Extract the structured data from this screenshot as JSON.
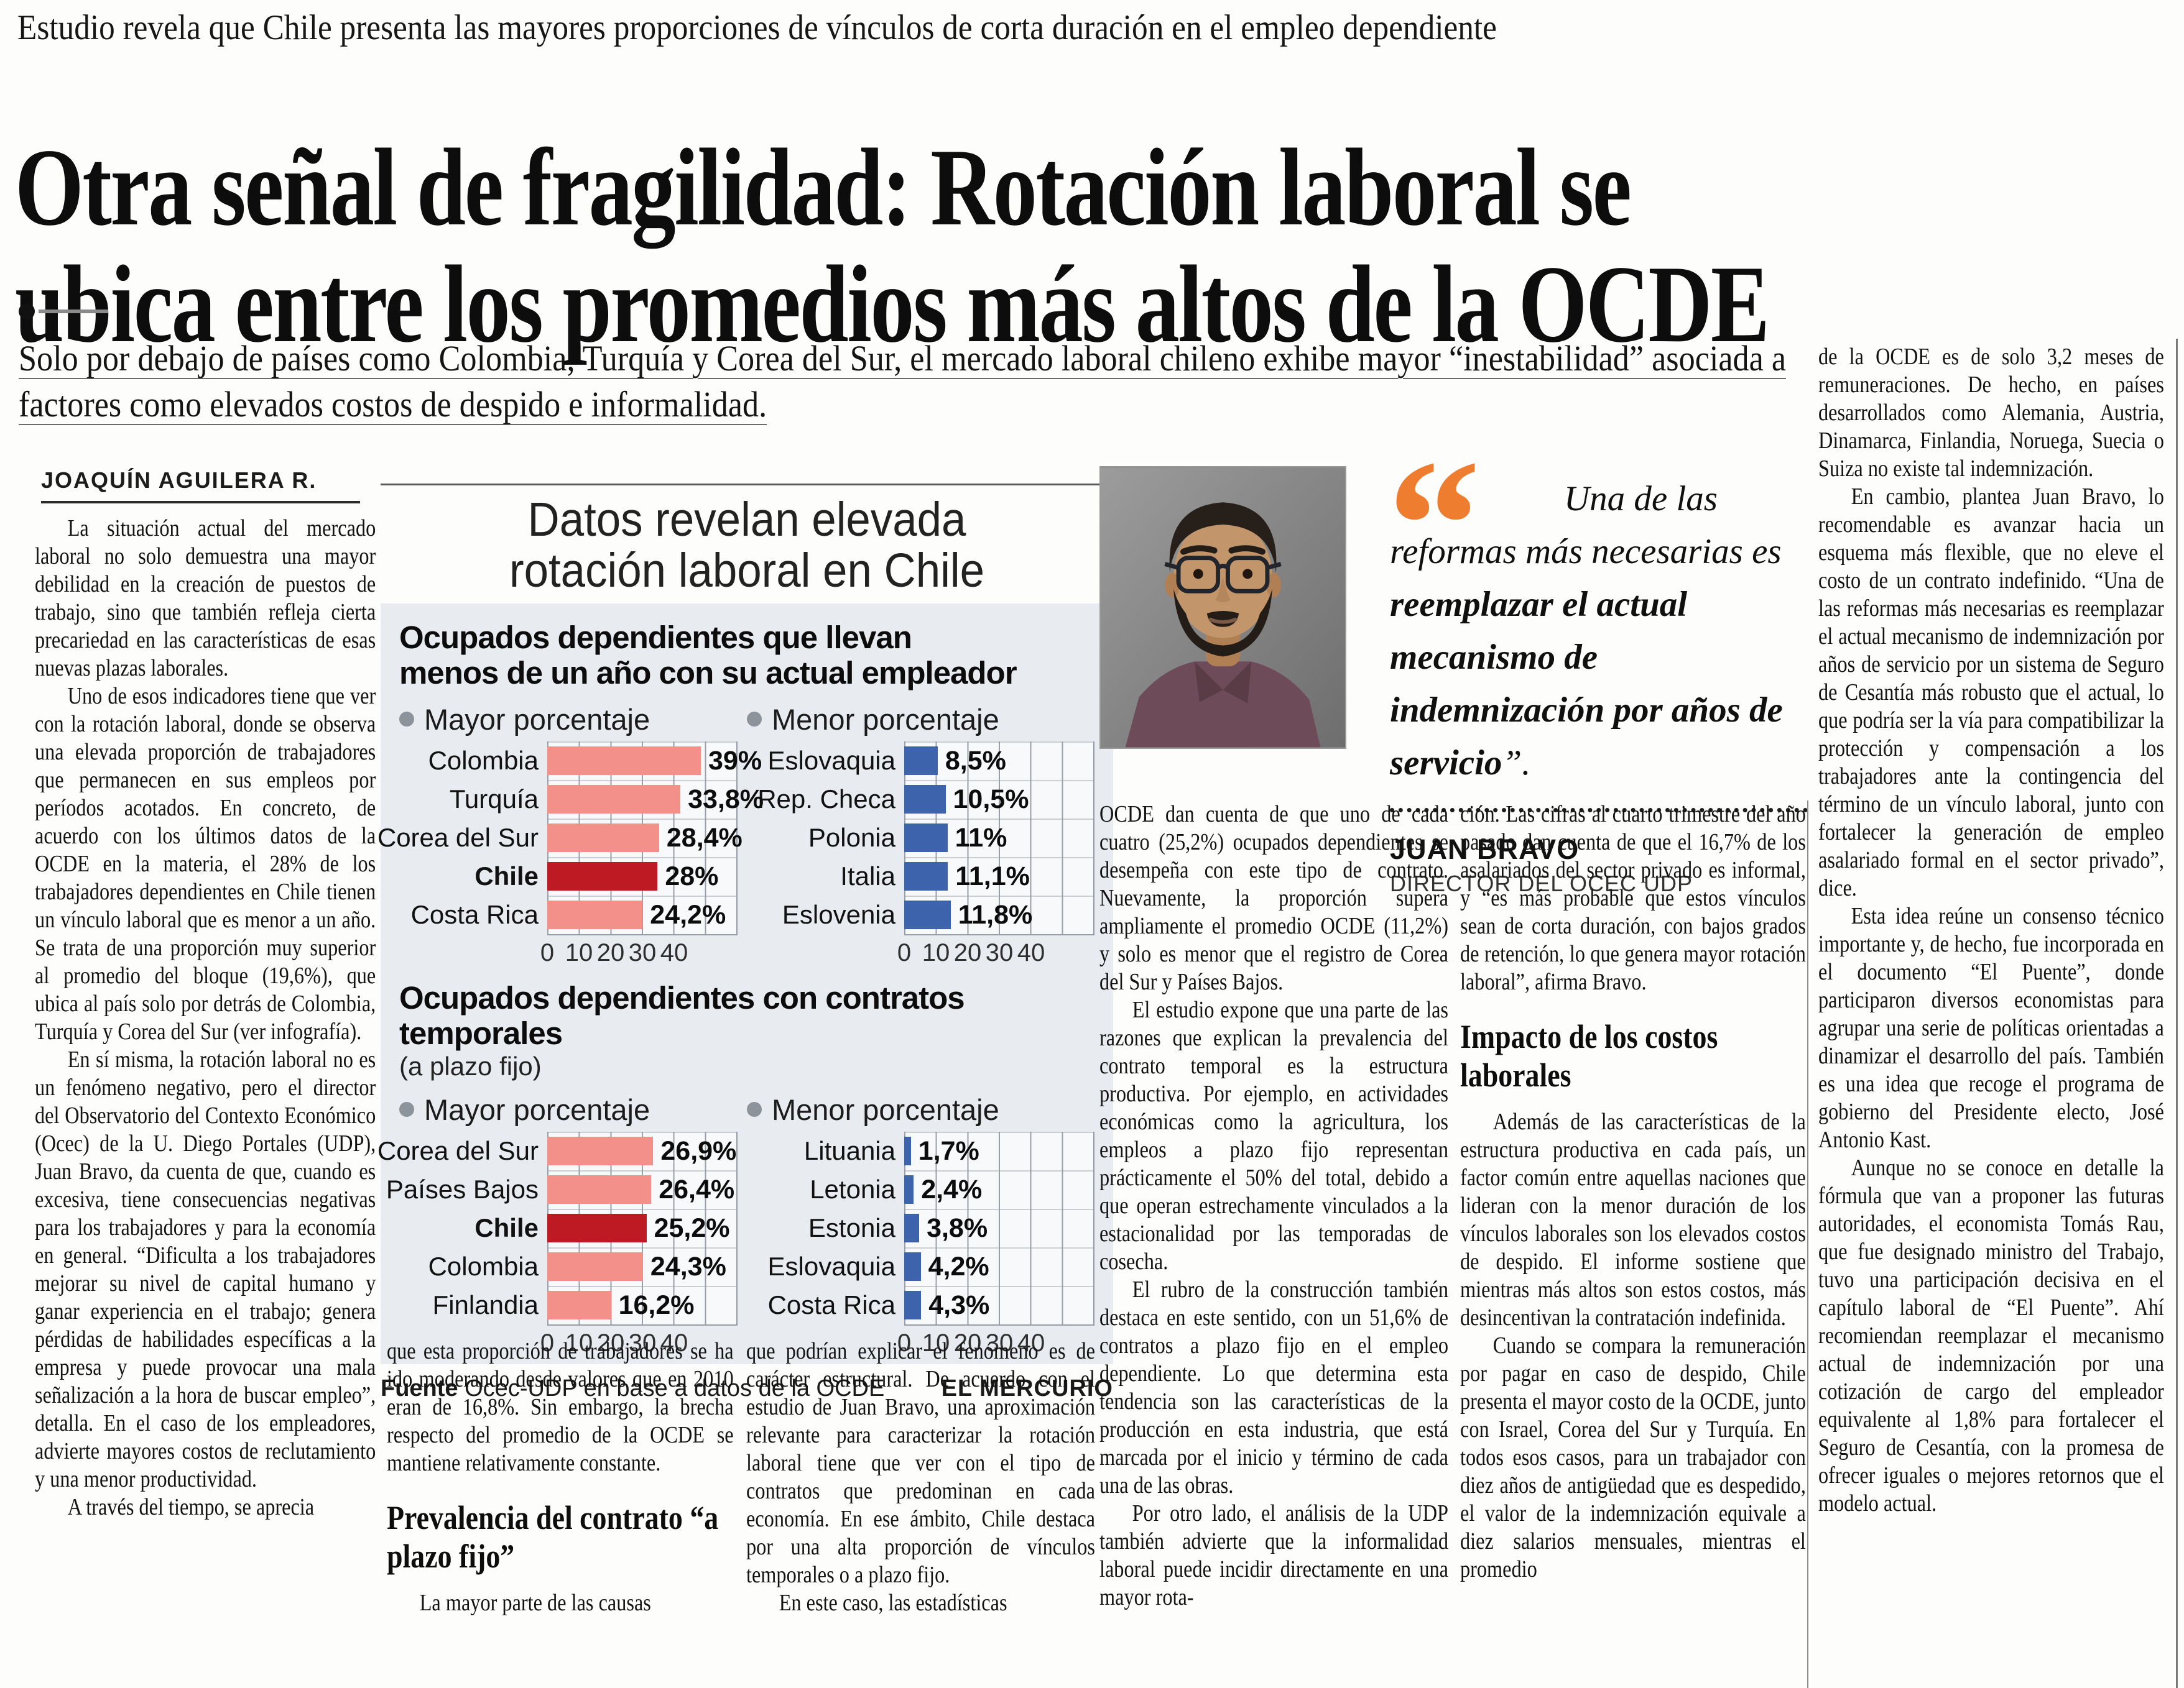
{
  "page": {
    "kicker": "Estudio revela que Chile presenta las mayores proporciones de vínculos de corta duración en el empleo dependiente",
    "headline_line1": "Otra señal de fragilidad: Rotación laboral se",
    "headline_line2": "ubica entre los promedios más altos de la OCDE",
    "deck": "Solo por debajo de países como Colombia, Turquía y Corea del Sur, el mercado laboral chileno exhibe mayor “inestabilidad” asociada a factores como elevados costos de despido e informalidad.",
    "byline": "JOAQUÍN AGUILERA R."
  },
  "body": {
    "col1": [
      "La situación actual del mercado laboral no solo demuestra una mayor debilidad en la creación de puestos de trabajo, sino que también refleja cierta precariedad en las características de esas nuevas plazas laborales.",
      "Uno de esos indicadores tiene que ver con la rotación laboral, donde se observa una elevada proporción de trabajadores que permanecen en sus empleos por períodos acotados. En concreto, de acuerdo con los últimos datos de la OCDE en la materia, el 28% de los trabajadores dependientes en Chile tienen un vínculo laboral que es menor a un año. Se trata de una proporción muy superior al promedio del bloque (19,6%), que ubica al país solo por detrás de Colombia, Turquía y Corea del Sur (ver infografía).",
      "En sí misma, la rotación laboral no es un fenómeno negativo, pero el director del Observatorio del Contexto Económico (Ocec) de la U. Diego Portales (UDP), Juan Bravo, da cuenta de que, cuando es excesiva, tiene consecuencias negativas para los trabajadores y para la economía en general. “Dificulta a los trabajadores mejorar su nivel de capital humano y ganar experiencia en el trabajo; genera pérdidas de habilidades específicas a la empresa y puede provocar una mala señalización a la hora de buscar empleo”, detalla. En el caso de los empleadores, advierte mayores costos de reclutamiento y una menor productividad.",
      "A través del tiempo, se aprecia"
    ],
    "col2_p1": "que esta proporción de trabajadores se ha ido moderando desde valores que en 2010 eran de 16,8%. Sin embargo, la brecha respecto del promedio de la OCDE se mantiene relativamente constante.",
    "col2_subhead": "Prevalencia del contrato “a plazo fijo”",
    "col2_p2": "La mayor parte de las causas",
    "col3_p1": "que podrían explicar el fenómeno es de carácter estructural. De acuerdo con el estudio de Juan Bravo, una aproximación relevante para caracterizar la rotación laboral tiene que ver con el tipo de contratos que predominan en cada economía. En ese ámbito, Chile destaca por una alta proporción de vínculos temporales o a plazo fijo.",
    "col3_p2": "En este caso, las estadísticas",
    "col4": [
      "OCDE dan cuenta de que uno de cada cuatro (25,2%) ocupados dependientes se desempeña con este tipo de contrato. Nuevamente, la proporción supera ampliamente el promedio OCDE (11,2%) y solo es menor que el registro de Corea del Sur y Países Bajos.",
      "El estudio expone que una parte de las razones que explican la prevalencia del contrato temporal es la estructura productiva. Por ejemplo, en actividades económicas como la agricultura, los empleos a plazo fijo representan prácticamente el 50% del total, debido a que operan estrechamente vinculados a la estacionalidad por las temporadas de cosecha.",
      "El rubro de la construcción también destaca en este sentido, con un 51,6% de contratos a plazo fijo en el empleo dependiente. Lo que determina esta tendencia son las características de la producción en esta industria, que está marcada por el inicio y término de cada una de las obras.",
      "Por otro lado, el análisis de la UDP también advierte que la informalidad laboral puede incidir directamente en una mayor rota-"
    ],
    "col5_p1": "ción. Las cifras al cuarto trimestre del año pasado dan cuenta de que el 16,7% de los asalariados del sector privado es informal, y “es más probable que estos vínculos sean de corta duración, con bajos grados de retención, lo que genera mayor rotación laboral”, afirma Bravo.",
    "col5_subhead": "Impacto de los costos laborales",
    "col5_p2": "Además de las características de la estructura productiva en cada país, un factor común entre aquellas naciones que lideran con la menor duración de los vínculos laborales son los elevados costos de despido. El informe sostiene que mientras más altos son estos costos, más desincentivan la contratación indefinida.",
    "col5_p3": "Cuando se compara la remuneración por pagar en caso de despido, Chile presenta el mayor costo de la OCDE, junto con Israel, Corea del Sur y Turquía. En todos esos casos, para un trabajador con diez años de antigüedad que es despedido, el valor de la indemnización equivale a diez salarios mensuales, mientras el promedio",
    "col6": [
      "de la OCDE es de solo 3,2 meses de remuneraciones. De hecho, en países desarrollados como Alemania, Austria, Dinamarca, Finlandia, Noruega, Suecia o Suiza no existe tal indemnización.",
      "En cambio, plantea Juan Bravo, lo recomendable es avanzar hacia un esquema más flexible, que no eleve el costo de un contrato indefinido. “Una de las reformas más necesarias es reemplazar el actual mecanismo de indemnización por años de servicio por un sistema de Seguro de Cesantía más robusto que el actual, lo que podría ser la vía para compatibilizar la protección y compensación a los trabajadores ante la contingencia del término de un vínculo laboral, junto con fortalecer la generación de empleo asalariado formal en el sector privado”, dice.",
      "Esta idea reúne un consenso técnico importante y, de hecho, fue incorporada en el documento “El Puente”, donde participaron diversos economistas para agrupar una serie de políticas orientadas a dinamizar el desarrollo del país. También es una idea que recoge el programa de gobierno del Presidente electo, José Antonio Kast.",
      "Aunque no se conoce en detalle la fórmula que van a proponer las futuras autoridades, el economista Tomás Rau, que fue designado ministro del Trabajo, tuvo una participación decisiva en el capítulo laboral de “El Puente”. Ahí recomiendan reemplazar el mecanismo actual de indemnización por una cotización de cargo del empleador equivalente al 1,8% para fortalecer el Seguro de Cesantía, con la promesa de ofrecer iguales o mejores retornos que el modelo actual."
    ]
  },
  "infographic": {
    "title_line1": "Datos revelan elevada",
    "title_line2": "rotación laboral en Chile",
    "legend_mayor": "Mayor porcentaje",
    "legend_menor": "Menor porcentaje",
    "ticks": [
      "0",
      "10",
      "20",
      "30",
      "40"
    ],
    "section1": {
      "header_line1": "Ocupados dependientes que llevan",
      "header_line2": "menos de un año con su actual empleador",
      "mayor": {
        "rows": [
          {
            "label": "Colombia",
            "value": 39,
            "display": "39%"
          },
          {
            "label": "Turquía",
            "value": 33.8,
            "display": "33,8%"
          },
          {
            "label": "Corea del Sur",
            "value": 28.4,
            "display": "28,4%"
          },
          {
            "label": "Chile",
            "value": 28,
            "display": "28%"
          },
          {
            "label": "Costa Rica",
            "value": 24.2,
            "display": "24,2%"
          }
        ]
      },
      "menor": {
        "rows": [
          {
            "label": "Eslovaquia",
            "value": 8.5,
            "display": "8,5%"
          },
          {
            "label": "Rep. Checa",
            "value": 10.5,
            "display": "10,5%"
          },
          {
            "label": "Polonia",
            "value": 11,
            "display": "11%"
          },
          {
            "label": "Italia",
            "value": 11.1,
            "display": "11,1%"
          },
          {
            "label": "Eslovenia",
            "value": 11.8,
            "display": "11,8%"
          }
        ]
      }
    },
    "section2": {
      "header": "Ocupados dependientes con contratos temporales",
      "subheader": "(a plazo fijo)",
      "mayor": {
        "rows": [
          {
            "label": "Corea del Sur",
            "value": 26.9,
            "display": "26,9%"
          },
          {
            "label": "Países Bajos",
            "value": 26.4,
            "display": "26,4%"
          },
          {
            "label": "Chile",
            "value": 25.2,
            "display": "25,2%"
          },
          {
            "label": "Colombia",
            "value": 24.3,
            "display": "24,3%"
          },
          {
            "label": "Finlandia",
            "value": 16.2,
            "display": "16,2%"
          }
        ]
      },
      "menor": {
        "rows": [
          {
            "label": "Lituania",
            "value": 1.7,
            "display": "1,7%"
          },
          {
            "label": "Letonia",
            "value": 2.4,
            "display": "2,4%"
          },
          {
            "label": "Estonia",
            "value": 3.8,
            "display": "3,8%"
          },
          {
            "label": "Eslovaquia",
            "value": 4.2,
            "display": "4,2%"
          },
          {
            "label": "Costa Rica",
            "value": 4.3,
            "display": "4,3%"
          }
        ]
      }
    },
    "source_label": "Fuente",
    "source_text": "Ocec-UDP en base a datos de la OCDE",
    "credit": "EL MERCURIO"
  },
  "chart_data": [
    {
      "type": "bar",
      "title": "Ocupados dependientes que llevan menos de un año con su actual empleador",
      "unit": "%",
      "xlim": [
        0,
        40
      ],
      "ticks": [
        0,
        10,
        20,
        30,
        40
      ],
      "orientation": "horizontal",
      "series": [
        {
          "name": "Mayor porcentaje",
          "categories": [
            "Colombia",
            "Turquía",
            "Corea del Sur",
            "Chile",
            "Costa Rica"
          ],
          "values": [
            39,
            33.8,
            28.4,
            28,
            24.2
          ],
          "highlight": "Chile"
        },
        {
          "name": "Menor porcentaje",
          "categories": [
            "Eslovaquia",
            "Rep. Checa",
            "Polonia",
            "Italia",
            "Eslovenia"
          ],
          "values": [
            8.5,
            10.5,
            11,
            11.1,
            11.8
          ]
        }
      ]
    },
    {
      "type": "bar",
      "title": "Ocupados dependientes con contratos temporales (a plazo fijo)",
      "unit": "%",
      "xlim": [
        0,
        40
      ],
      "ticks": [
        0,
        10,
        20,
        30,
        40
      ],
      "orientation": "horizontal",
      "series": [
        {
          "name": "Mayor porcentaje",
          "categories": [
            "Corea del Sur",
            "Países Bajos",
            "Chile",
            "Colombia",
            "Finlandia"
          ],
          "values": [
            26.9,
            26.4,
            25.2,
            24.3,
            16.2
          ],
          "highlight": "Chile"
        },
        {
          "name": "Menor porcentaje",
          "categories": [
            "Lituania",
            "Letonia",
            "Estonia",
            "Eslovaquia",
            "Costa Rica"
          ],
          "values": [
            1.7,
            2.4,
            3.8,
            4.2,
            4.3
          ]
        }
      ]
    }
  ],
  "quote": {
    "mark": "“",
    "text_regular": "Una de las reformas más necesarias es ",
    "text_bold": "reemplazar el actual mecanismo de indemnización por años de servicio",
    "text_close": "”.",
    "author": "JUAN BRAVO",
    "role": "DIRECTOR DEL OCEC UDP"
  },
  "colors": {
    "accent_orange": "#ee7d2f",
    "bar_pink": "#f4908a",
    "bar_red": "#bd1a23",
    "bar_blue": "#3e63ad",
    "infographic_bg": "#e8ecf1"
  }
}
